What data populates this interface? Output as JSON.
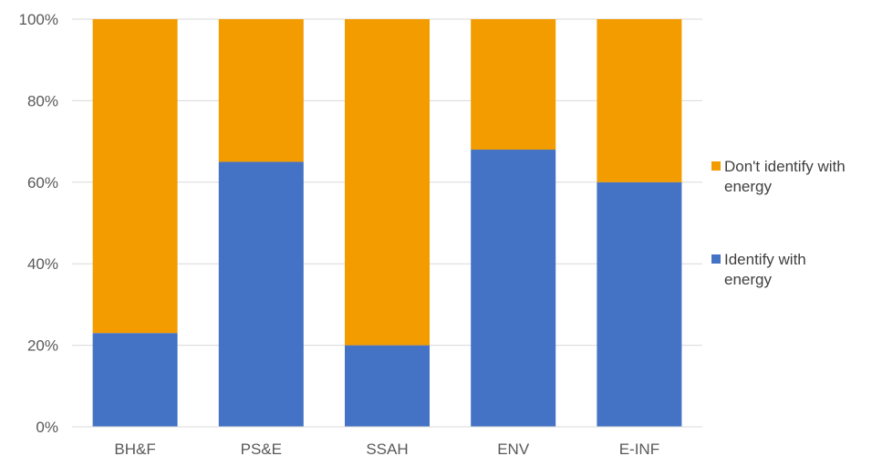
{
  "chart_data": {
    "type": "bar",
    "stacked": true,
    "categories": [
      "BH&F",
      "PS&E",
      "SSAH",
      "ENV",
      "E-INF"
    ],
    "series": [
      {
        "name": "Identify with energy",
        "values": [
          23,
          65,
          20,
          68,
          60
        ],
        "color": "#4472C4"
      },
      {
        "name": "Don't identify with energy",
        "values": [
          77,
          35,
          80,
          32,
          40
        ],
        "color": "#F29C00"
      }
    ],
    "ylim": [
      0,
      100
    ],
    "yticks": [
      "0%",
      "20%",
      "40%",
      "60%",
      "80%",
      "100%"
    ],
    "grid": true,
    "legend_position": "right",
    "legend": [
      {
        "lines": [
          "Don't identify with",
          "energy"
        ],
        "color": "#F29C00"
      },
      {
        "lines": [
          "Identify with",
          "energy"
        ],
        "color": "#4472C4"
      }
    ],
    "title": "",
    "xlabel": "",
    "ylabel": ""
  }
}
